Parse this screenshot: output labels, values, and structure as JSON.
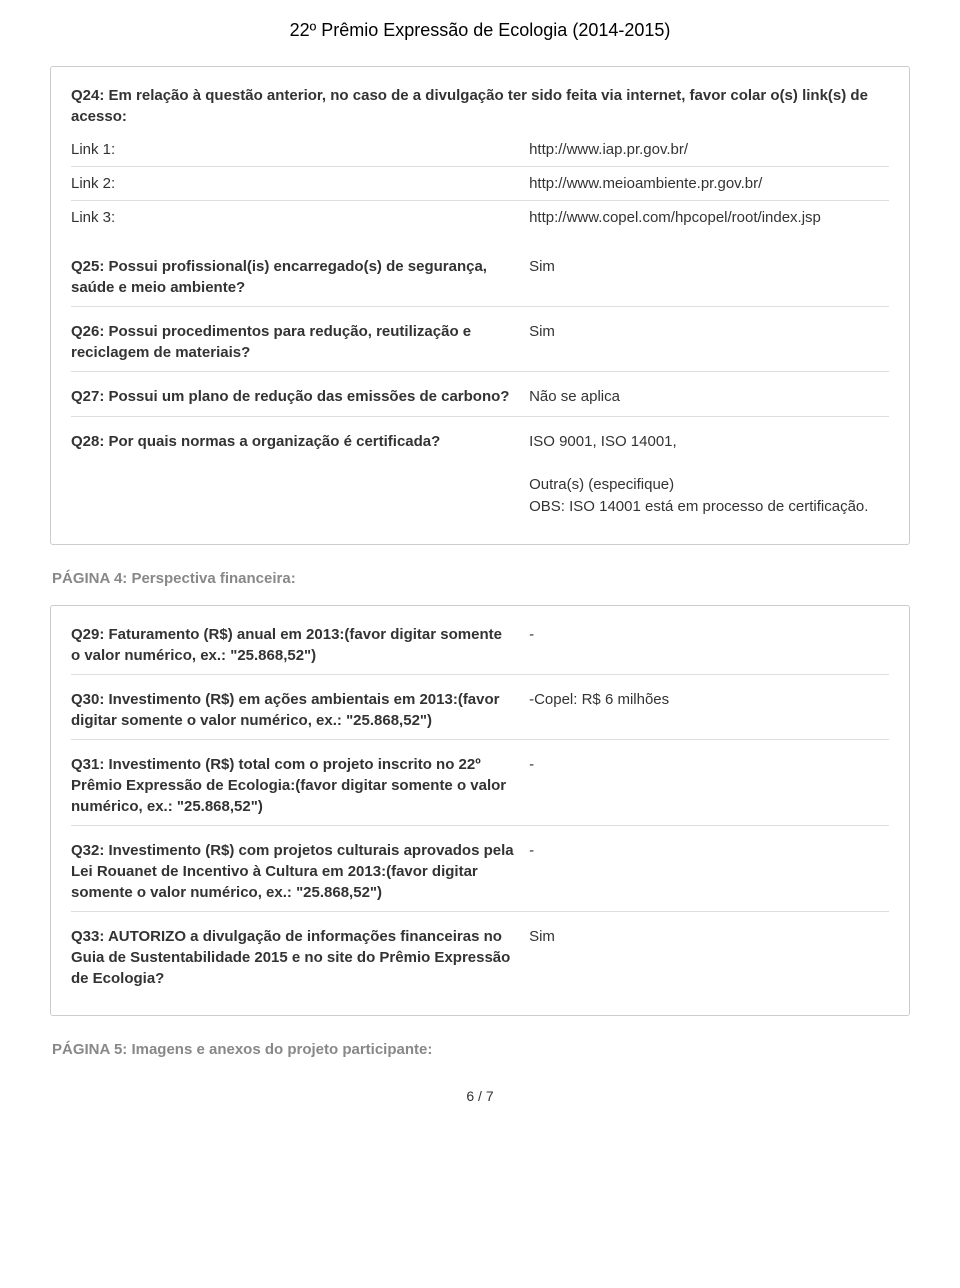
{
  "page": {
    "header_title": "22º Prêmio Expressão de Ecologia (2014-2015)",
    "footer": "6 / 7"
  },
  "card1": {
    "q24": {
      "text": "Q24: Em relação à questão anterior, no caso de a divulgação ter sido feita via internet, favor colar o(s) link(s) de acesso:",
      "links": [
        {
          "label": "Link 1:",
          "value": "http://www.iap.pr.gov.br/"
        },
        {
          "label": "Link 2:",
          "value": "http://www.meioambiente.pr.gov.br/"
        },
        {
          "label": "Link 3:",
          "value": "http://www.copel.com/hpcopel/root/index.jsp"
        }
      ]
    },
    "q25": {
      "text": "Q25: Possui profissional(is) encarregado(s) de segurança, saúde e meio ambiente?",
      "answer": "Sim"
    },
    "q26": {
      "text": "Q26: Possui procedimentos para redução, reutilização e reciclagem de materiais?",
      "answer": "Sim"
    },
    "q27": {
      "text": "Q27: Possui um plano de redução das emissões de carbono?",
      "answer": "Não se aplica"
    },
    "q28": {
      "text": "Q28: Por quais normas a organização é certificada?",
      "answer": "ISO 9001,  ISO 14001,\n\nOutra(s) (especifique)\nOBS: ISO 14001 está em processo de certificação."
    }
  },
  "section4": {
    "heading": "PÁGINA 4: Perspectiva financeira:"
  },
  "card2": {
    "q29": {
      "text": "Q29: Faturamento (R$) anual em 2013:(favor digitar somente o valor numérico, ex.: \"25.868,52\")",
      "answer": "-"
    },
    "q30": {
      "text": "Q30: Investimento (R$) em ações ambientais em 2013:(favor digitar somente o valor numérico, ex.: \"25.868,52\")",
      "answer": "-Copel: R$ 6 milhões"
    },
    "q31": {
      "text": "Q31: Investimento (R$) total com o projeto inscrito no 22º Prêmio Expressão de Ecologia:(favor digitar somente o valor numérico, ex.: \"25.868,52\")",
      "answer": "-"
    },
    "q32": {
      "text": "Q32: Investimento (R$) com projetos culturais aprovados pela Lei Rouanet de Incentivo à Cultura em 2013:(favor digitar somente o valor numérico, ex.: \"25.868,52\")",
      "answer": "-"
    },
    "q33": {
      "text": "Q33: AUTORIZO a divulgação de informações financeiras no Guia de Sustentabilidade 2015 e no site do Prêmio Expressão de Ecologia?",
      "answer": "Sim"
    }
  },
  "section5": {
    "heading": "PÁGINA 5: Imagens e anexos do projeto participante:"
  }
}
